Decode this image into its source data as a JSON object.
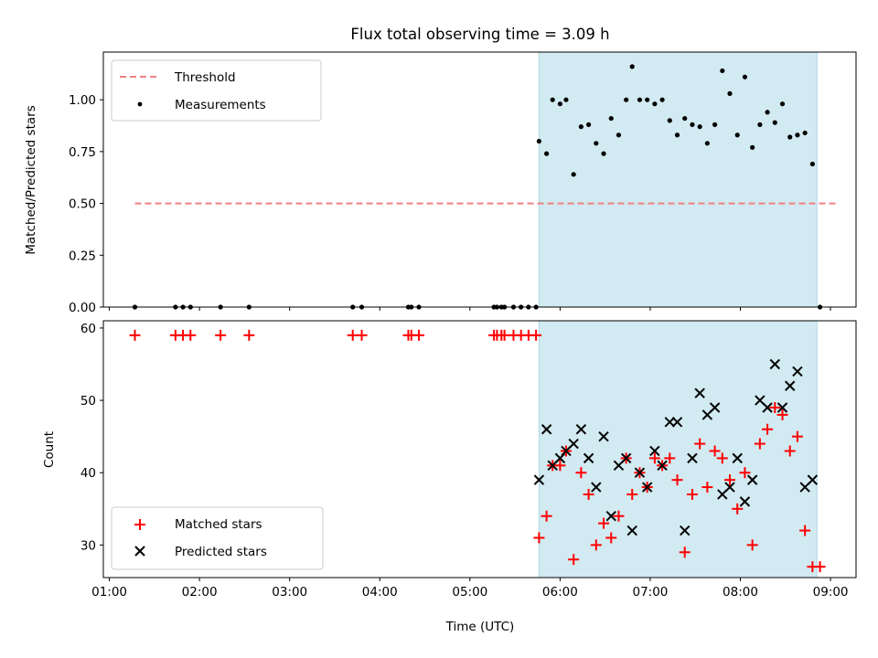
{
  "chart_data": [
    {
      "type": "scatter",
      "title": "Flux total observing time = 3.09 h",
      "xlabel": "",
      "ylabel": "Matched/Predicted stars",
      "xlim": [
        "00:56",
        "09:17"
      ],
      "ylim": [
        0,
        1.23
      ],
      "x_ticks": [
        "01:00",
        "02:00",
        "03:00",
        "04:00",
        "05:00",
        "06:00",
        "07:00",
        "08:00",
        "09:00"
      ],
      "y_ticks": [
        "0.00",
        "0.25",
        "0.50",
        "0.75",
        "1.00"
      ],
      "y_tick_values": [
        0,
        0.25,
        0.5,
        0.75,
        1.0
      ],
      "shaded_interval": [
        "05:46",
        "08:51"
      ],
      "shade_color": "#add8e6",
      "legend_position": "upper left",
      "threshold": {
        "name": "Threshold",
        "value": 0.5,
        "x_range": [
          "01:17",
          "09:04"
        ],
        "color": "#f08080",
        "style": "dashed"
      },
      "series": [
        {
          "name": "Measurements",
          "color": "#000000",
          "marker": "dot",
          "points": [
            [
              "01:17",
              0
            ],
            [
              "01:44",
              0
            ],
            [
              "01:49",
              0
            ],
            [
              "01:54",
              0
            ],
            [
              "02:14",
              0
            ],
            [
              "02:33",
              0
            ],
            [
              "03:42",
              0
            ],
            [
              "03:48",
              0
            ],
            [
              "04:19",
              0
            ],
            [
              "04:21",
              0
            ],
            [
              "04:26",
              0
            ],
            [
              "05:16",
              0
            ],
            [
              "05:18",
              0
            ],
            [
              "05:21",
              0
            ],
            [
              "05:23",
              0
            ],
            [
              "05:29",
              0
            ],
            [
              "05:34",
              0
            ],
            [
              "05:39",
              0
            ],
            [
              "05:44",
              0
            ],
            [
              "05:46",
              0.8
            ],
            [
              "05:51",
              0.74
            ],
            [
              "05:55",
              1.0
            ],
            [
              "06:00",
              0.98
            ],
            [
              "06:04",
              1.0
            ],
            [
              "06:09",
              0.64
            ],
            [
              "06:14",
              0.87
            ],
            [
              "06:19",
              0.88
            ],
            [
              "06:24",
              0.79
            ],
            [
              "06:29",
              0.74
            ],
            [
              "06:34",
              0.91
            ],
            [
              "06:39",
              0.83
            ],
            [
              "06:44",
              1.0
            ],
            [
              "06:48",
              1.16
            ],
            [
              "06:53",
              1.0
            ],
            [
              "06:58",
              1.0
            ],
            [
              "07:03",
              0.98
            ],
            [
              "07:08",
              1.0
            ],
            [
              "07:13",
              0.9
            ],
            [
              "07:18",
              0.83
            ],
            [
              "07:23",
              0.91
            ],
            [
              "07:28",
              0.88
            ],
            [
              "07:33",
              0.87
            ],
            [
              "07:38",
              0.79
            ],
            [
              "07:43",
              0.88
            ],
            [
              "07:48",
              1.14
            ],
            [
              "07:53",
              1.03
            ],
            [
              "07:58",
              0.83
            ],
            [
              "08:03",
              1.11
            ],
            [
              "08:08",
              0.77
            ],
            [
              "08:13",
              0.88
            ],
            [
              "08:18",
              0.94
            ],
            [
              "08:23",
              0.89
            ],
            [
              "08:28",
              0.98
            ],
            [
              "08:33",
              0.82
            ],
            [
              "08:38",
              0.83
            ],
            [
              "08:43",
              0.84
            ],
            [
              "08:48",
              0.69
            ],
            [
              "08:53",
              0
            ]
          ]
        }
      ]
    },
    {
      "type": "scatter",
      "title": "",
      "xlabel": "Time (UTC)",
      "ylabel": "Count",
      "xlim": [
        "00:56",
        "09:17"
      ],
      "ylim": [
        25.5,
        61
      ],
      "x_ticks": [
        "01:00",
        "02:00",
        "03:00",
        "04:00",
        "05:00",
        "06:00",
        "07:00",
        "08:00",
        "09:00"
      ],
      "y_ticks": [
        "30",
        "40",
        "50",
        "60"
      ],
      "y_tick_values": [
        30,
        40,
        50,
        60
      ],
      "shaded_interval": [
        "05:46",
        "08:51"
      ],
      "shade_color": "#add8e6",
      "legend_position": "lower left",
      "series": [
        {
          "name": "Matched stars",
          "color": "#ff0000",
          "marker": "plus",
          "points": [
            [
              "01:17",
              59
            ],
            [
              "01:44",
              59
            ],
            [
              "01:49",
              59
            ],
            [
              "01:54",
              59
            ],
            [
              "02:14",
              59
            ],
            [
              "02:33",
              59
            ],
            [
              "03:42",
              59
            ],
            [
              "03:48",
              59
            ],
            [
              "04:19",
              59
            ],
            [
              "04:21",
              59
            ],
            [
              "04:26",
              59
            ],
            [
              "05:16",
              59
            ],
            [
              "05:18",
              59
            ],
            [
              "05:21",
              59
            ],
            [
              "05:23",
              59
            ],
            [
              "05:29",
              59
            ],
            [
              "05:34",
              59
            ],
            [
              "05:39",
              59
            ],
            [
              "05:44",
              59
            ],
            [
              "05:46",
              31
            ],
            [
              "05:51",
              34
            ],
            [
              "05:55",
              41
            ],
            [
              "06:00",
              41
            ],
            [
              "06:04",
              43
            ],
            [
              "06:09",
              28
            ],
            [
              "06:14",
              40
            ],
            [
              "06:19",
              37
            ],
            [
              "06:24",
              30
            ],
            [
              "06:29",
              33
            ],
            [
              "06:34",
              31
            ],
            [
              "06:39",
              34
            ],
            [
              "06:44",
              42
            ],
            [
              "06:48",
              37
            ],
            [
              "06:53",
              40
            ],
            [
              "06:58",
              38
            ],
            [
              "07:03",
              42
            ],
            [
              "07:08",
              41
            ],
            [
              "07:13",
              42
            ],
            [
              "07:18",
              39
            ],
            [
              "07:23",
              29
            ],
            [
              "07:28",
              37
            ],
            [
              "07:33",
              44
            ],
            [
              "07:38",
              38
            ],
            [
              "07:43",
              43
            ],
            [
              "07:48",
              42
            ],
            [
              "07:53",
              39
            ],
            [
              "07:58",
              35
            ],
            [
              "08:03",
              40
            ],
            [
              "08:08",
              30
            ],
            [
              "08:13",
              44
            ],
            [
              "08:18",
              46
            ],
            [
              "08:23",
              49
            ],
            [
              "08:28",
              48
            ],
            [
              "08:33",
              43
            ],
            [
              "08:38",
              45
            ],
            [
              "08:43",
              32
            ],
            [
              "08:48",
              27
            ],
            [
              "08:53",
              27
            ]
          ]
        },
        {
          "name": "Predicted stars",
          "color": "#000000",
          "marker": "x",
          "points": [
            [
              "05:46",
              39
            ],
            [
              "05:51",
              46
            ],
            [
              "05:55",
              41
            ],
            [
              "06:00",
              42
            ],
            [
              "06:04",
              43
            ],
            [
              "06:09",
              44
            ],
            [
              "06:14",
              46
            ],
            [
              "06:19",
              42
            ],
            [
              "06:24",
              38
            ],
            [
              "06:29",
              45
            ],
            [
              "06:34",
              34
            ],
            [
              "06:39",
              41
            ],
            [
              "06:44",
              42
            ],
            [
              "06:48",
              32
            ],
            [
              "06:53",
              40
            ],
            [
              "06:58",
              38
            ],
            [
              "07:03",
              43
            ],
            [
              "07:08",
              41
            ],
            [
              "07:13",
              47
            ],
            [
              "07:18",
              47
            ],
            [
              "07:23",
              32
            ],
            [
              "07:28",
              42
            ],
            [
              "07:33",
              51
            ],
            [
              "07:38",
              48
            ],
            [
              "07:43",
              49
            ],
            [
              "07:48",
              37
            ],
            [
              "07:53",
              38
            ],
            [
              "07:58",
              42
            ],
            [
              "08:03",
              36
            ],
            [
              "08:08",
              39
            ],
            [
              "08:13",
              50
            ],
            [
              "08:18",
              49
            ],
            [
              "08:23",
              55
            ],
            [
              "08:28",
              49
            ],
            [
              "08:33",
              52
            ],
            [
              "08:38",
              54
            ],
            [
              "08:43",
              38
            ],
            [
              "08:48",
              39
            ]
          ]
        }
      ]
    }
  ]
}
